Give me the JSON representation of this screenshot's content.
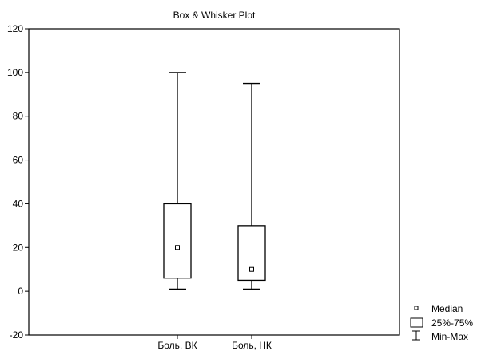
{
  "chart_data": {
    "type": "box",
    "title": "Box & Whisker Plot",
    "ylim": [
      -20,
      120
    ],
    "yticks": [
      -20,
      0,
      20,
      40,
      60,
      80,
      100,
      120
    ],
    "categories": [
      "Боль, ВК",
      "Боль, НК"
    ],
    "boxes": [
      {
        "min": 1,
        "q1": 6,
        "median": 20,
        "q3": 40,
        "max": 100
      },
      {
        "min": 1,
        "q1": 5,
        "median": 10,
        "q3": 30,
        "max": 95
      }
    ],
    "legend": {
      "position": "bottom-right",
      "items": [
        "Median",
        "25%-75%",
        "Min-Max"
      ]
    }
  }
}
